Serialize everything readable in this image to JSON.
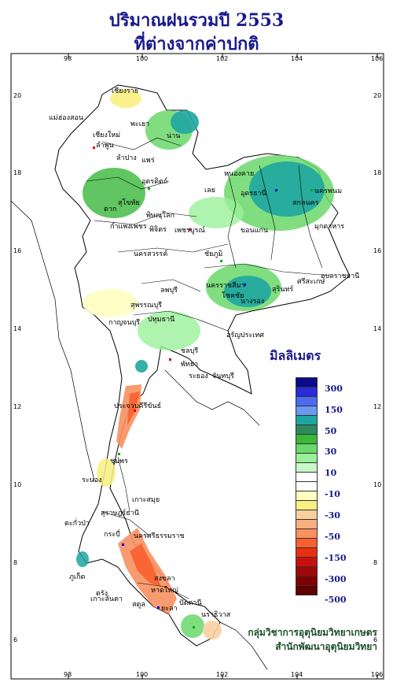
{
  "title_line1": "ปริมาณฝนรวมปี  2553",
  "title_line2": "ที่ต่างจากค่าปกติ",
  "axis_top_ticks": [
    "98",
    "100",
    "102",
    "104",
    "106"
  ],
  "axis_bottom_ticks": [
    "98",
    "100",
    "102",
    "104",
    "106"
  ],
  "axis_left_ticks": [
    "20",
    "18",
    "16",
    "14",
    "12",
    "10",
    "8",
    "6"
  ],
  "axis_right_ticks": [
    "20",
    "18",
    "16",
    "14",
    "12",
    "10",
    "8",
    "6"
  ],
  "legend": {
    "title": "มิลลิเมตร",
    "labels": [
      "300",
      "150",
      "50",
      "30",
      "10",
      "-10",
      "-30",
      "-50",
      "-150",
      "-300",
      "-500"
    ],
    "colors": [
      "#0a0a8a",
      "#2a2ad8",
      "#4a6af0",
      "#6a9af0",
      "#1ea6a0",
      "#2e8a5e",
      "#3ab83a",
      "#6ad86a",
      "#9af09a",
      "#c8f8c8",
      "#ffffff",
      "#ffffff",
      "#fefec0",
      "#f8f080",
      "#f8d0a0",
      "#f8b080",
      "#f89060",
      "#f86030",
      "#e83010",
      "#c81010",
      "#a00808",
      "#800000",
      "#600000"
    ]
  },
  "provinces": [
    {
      "name": "เชียงราย"
    },
    {
      "name": "แม่ฮ่องสอน"
    },
    {
      "name": "เชียงใหม่"
    },
    {
      "name": "ลำพูน"
    },
    {
      "name": "พะเยา"
    },
    {
      "name": "น่าน"
    },
    {
      "name": "ลำปาง"
    },
    {
      "name": "แพร่"
    },
    {
      "name": "อุตรดิตถ์"
    },
    {
      "name": "ตาก"
    },
    {
      "name": "สุโขทัย"
    },
    {
      "name": "พิษณุโลก"
    },
    {
      "name": "กำแพงเพชร"
    },
    {
      "name": "พิจิตร"
    },
    {
      "name": "เพชรบูรณ์"
    },
    {
      "name": "นครสวรรค์"
    },
    {
      "name": "หนองคาย"
    },
    {
      "name": "อุดรธานี"
    },
    {
      "name": "สกลนคร"
    },
    {
      "name": "นครพนม"
    },
    {
      "name": "เลย"
    },
    {
      "name": "มุกดาหาร"
    },
    {
      "name": "ขอนแก่น"
    },
    {
      "name": "ชัยภูมิ"
    },
    {
      "name": "อุบลราชธานี"
    },
    {
      "name": "ศรีสะเกษ"
    },
    {
      "name": "สุรินทร์"
    },
    {
      "name": "นครราชสีมา"
    },
    {
      "name": "โชคชัย"
    },
    {
      "name": "นางรอง"
    },
    {
      "name": "ลพบุรี"
    },
    {
      "name": "สุพรรณบุรี"
    },
    {
      "name": "กาญจนบุรี"
    },
    {
      "name": "ปทุมธานี"
    },
    {
      "name": "อรัญประเทศ"
    },
    {
      "name": "ชลบุรี"
    },
    {
      "name": "พัทยา"
    },
    {
      "name": "ระยอง"
    },
    {
      "name": "จันทบุรี"
    },
    {
      "name": "ประจวบคีรีขันธ์"
    },
    {
      "name": "ชุมพร"
    },
    {
      "name": "ระนอง"
    },
    {
      "name": "เกาะสมุย"
    },
    {
      "name": "สุราษฎร์ธานี"
    },
    {
      "name": "ตะกั่วป่า"
    },
    {
      "name": "ภูเก็ต"
    },
    {
      "name": "กระบี่"
    },
    {
      "name": "นครศรีธรรมราช"
    },
    {
      "name": "ตรัง"
    },
    {
      "name": "เกาะลันตา"
    },
    {
      "name": "สงขลา"
    },
    {
      "name": "หาดใหญ่"
    },
    {
      "name": "ปัตตานี"
    },
    {
      "name": "นราธิวาส"
    },
    {
      "name": "สตูล"
    },
    {
      "name": "ยะลา"
    }
  ],
  "credit_line1": "กลุ่มวิชาการอุตุนิยมวิทยาเกษตร",
  "credit_line2": "สำนักพัฒนาอุตุนิยมวิทยา"
}
